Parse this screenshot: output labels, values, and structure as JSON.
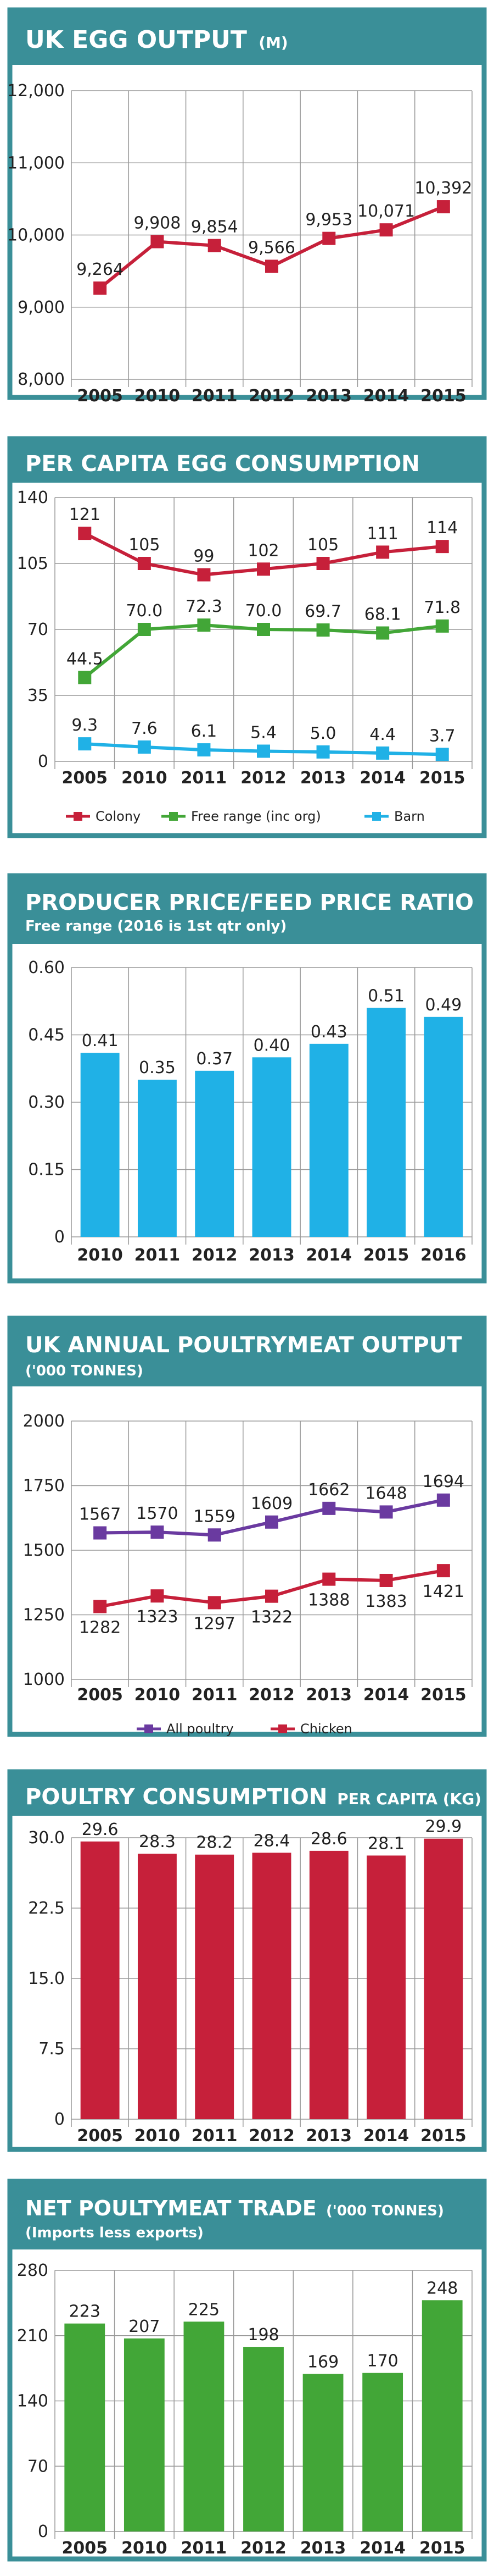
{
  "colors": {
    "frame": "#3a8f98",
    "header": "#3a8f98",
    "grid": "#9a9a9a",
    "red": "#c6203a",
    "green": "#42a637",
    "cyan": "#20b1e6",
    "purple": "#6a3aa0"
  },
  "panels": [
    {
      "title": "UK EGG OUTPUT",
      "title_suffix": "(M)",
      "subtitle": ""
    },
    {
      "title": "PER CAPITA EGG CONSUMPTION",
      "title_suffix": "",
      "subtitle": ""
    },
    {
      "title": "PRODUCER PRICE/FEED PRICE RATIO",
      "title_suffix": "",
      "subtitle": "Free range (2016 is 1st qtr only)"
    },
    {
      "title": "UK ANNUAL POULTRYMEAT OUTPUT",
      "title_suffix": "",
      "subtitle": "('000 TONNES)"
    },
    {
      "title": "POULTRY CONSUMPTION",
      "title_suffix": "PER CAPITA (KG)",
      "subtitle": ""
    },
    {
      "title": "NET POULTYMEAT TRADE",
      "title_suffix": "('000 TONNES)",
      "subtitle": "(Imports less exports)"
    }
  ],
  "chart_data": [
    {
      "type": "line",
      "categories": [
        "2005",
        "2010",
        "2011",
        "2012",
        "2013",
        "2014",
        "2015"
      ],
      "series": [
        {
          "values": [
            9264,
            9908,
            9854,
            9566,
            9953,
            10071,
            10392
          ],
          "labels": [
            "9,264",
            "9,908",
            "9,854",
            "9,566",
            "9,953",
            "10,071",
            "10,392"
          ],
          "color": "#c6203a"
        }
      ],
      "ylim": [
        8000,
        12000
      ],
      "yticks": [
        8000,
        9000,
        10000,
        11000,
        12000
      ],
      "ytick_labels": [
        "8,000",
        "9,000",
        "10,000",
        "11,000",
        "12,000"
      ],
      "grid": true
    },
    {
      "type": "line",
      "categories": [
        "2005",
        "2010",
        "2011",
        "2012",
        "2013",
        "2014",
        "2015"
      ],
      "series": [
        {
          "name": "Colony",
          "values": [
            121,
            105,
            99,
            102,
            105,
            111,
            114
          ],
          "labels": [
            "121",
            "105",
            "99",
            "102",
            "105",
            "111",
            "114"
          ],
          "color": "#c6203a"
        },
        {
          "name": "Free range (inc org)",
          "values": [
            44.5,
            70.0,
            72.3,
            70.0,
            69.7,
            68.1,
            71.8
          ],
          "labels": [
            "44.5",
            "70.0",
            "72.3",
            "70.0",
            "69.7",
            "68.1",
            "71.8"
          ],
          "color": "#42a637"
        },
        {
          "name": "Barn",
          "values": [
            9.3,
            7.6,
            6.1,
            5.4,
            5.0,
            4.4,
            3.7
          ],
          "labels": [
            "9.3",
            "7.6",
            "6.1",
            "5.4",
            "5.0",
            "4.4",
            "3.7"
          ],
          "color": "#20b1e6"
        }
      ],
      "ylim": [
        0,
        140
      ],
      "yticks": [
        0,
        35,
        70,
        105,
        140
      ],
      "ytick_labels": [
        "0",
        "35",
        "70",
        "105",
        "140"
      ],
      "grid": true,
      "legend": "bottom"
    },
    {
      "type": "bar",
      "categories": [
        "2010",
        "2011",
        "2012",
        "2013",
        "2014",
        "2015",
        "2016"
      ],
      "values": [
        0.41,
        0.35,
        0.37,
        0.4,
        0.43,
        0.51,
        0.49
      ],
      "labels": [
        "0.41",
        "0.35",
        "0.37",
        "0.40",
        "0.43",
        "0.51",
        "0.49"
      ],
      "color": "#20b1e6",
      "ylim": [
        0,
        0.6
      ],
      "yticks": [
        0,
        0.15,
        0.3,
        0.45,
        0.6
      ],
      "ytick_labels": [
        "0",
        "0.15",
        "0.30",
        "0.45",
        "0.60"
      ],
      "grid": true
    },
    {
      "type": "line",
      "categories": [
        "2005",
        "2010",
        "2011",
        "2012",
        "2013",
        "2014",
        "2015"
      ],
      "series": [
        {
          "name": "All poultry",
          "values": [
            1567,
            1570,
            1559,
            1609,
            1662,
            1648,
            1694
          ],
          "labels": [
            "1567",
            "1570",
            "1559",
            "1609",
            "1662",
            "1648",
            "1694"
          ],
          "color": "#6a3aa0",
          "label_pos": "above"
        },
        {
          "name": "Chicken",
          "values": [
            1282,
            1323,
            1297,
            1322,
            1388,
            1383,
            1421
          ],
          "labels": [
            "1282",
            "1323",
            "1297",
            "1322",
            "1388",
            "1383",
            "1421"
          ],
          "color": "#c6203a",
          "label_pos": "below"
        }
      ],
      "ylim": [
        1000,
        2000
      ],
      "yticks": [
        1000,
        1250,
        1500,
        1750,
        2000
      ],
      "ytick_labels": [
        "1000",
        "1250",
        "1500",
        "1750",
        "2000"
      ],
      "grid": true,
      "legend": "bottom"
    },
    {
      "type": "bar",
      "categories": [
        "2005",
        "2010",
        "2011",
        "2012",
        "2013",
        "2014",
        "2015"
      ],
      "values": [
        29.6,
        28.3,
        28.2,
        28.4,
        28.6,
        28.1,
        29.9
      ],
      "labels": [
        "29.6",
        "28.3",
        "28.2",
        "28.4",
        "28.6",
        "28.1",
        "29.9"
      ],
      "color": "#c6203a",
      "ylim": [
        0,
        30
      ],
      "yticks": [
        0,
        7.5,
        15,
        22.5,
        30
      ],
      "ytick_labels": [
        "0",
        "7.5",
        "15.0",
        "22.5",
        "30.0"
      ],
      "grid": true
    },
    {
      "type": "bar",
      "categories": [
        "2005",
        "2010",
        "2011",
        "2012",
        "2013",
        "2014",
        "2015"
      ],
      "values": [
        223,
        207,
        225,
        198,
        169,
        170,
        248
      ],
      "labels": [
        "223",
        "207",
        "225",
        "198",
        "169",
        "170",
        "248"
      ],
      "color": "#42a637",
      "ylim": [
        0,
        280
      ],
      "yticks": [
        0,
        70,
        140,
        210,
        280
      ],
      "ytick_labels": [
        "0",
        "70",
        "140",
        "210",
        "280"
      ],
      "grid": true
    }
  ]
}
